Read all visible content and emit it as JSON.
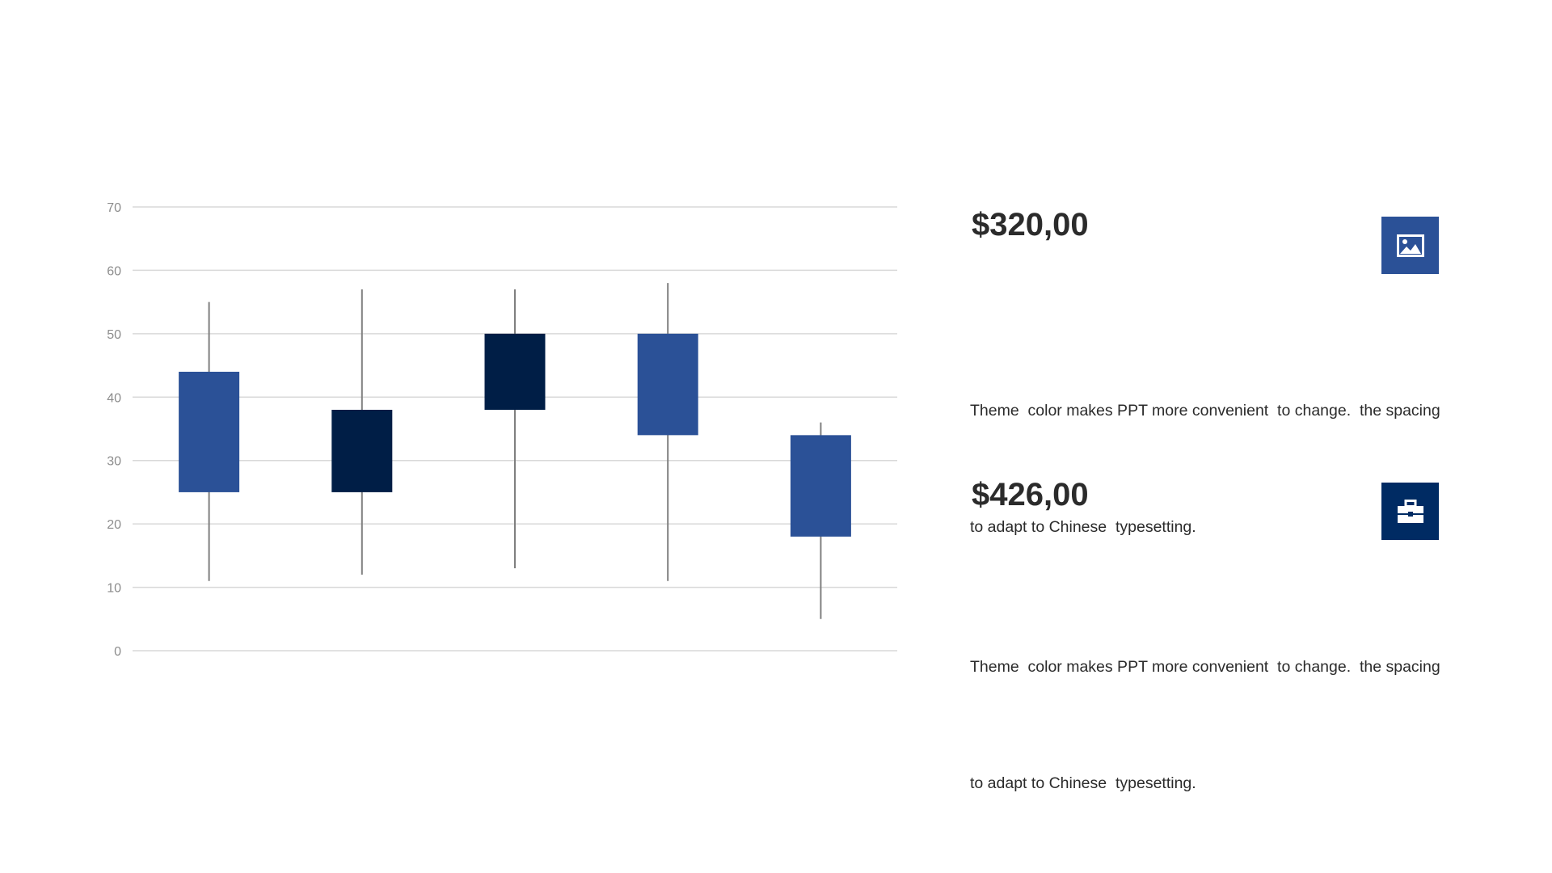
{
  "colors": {
    "rise_body": "#2b5197",
    "fall_body": "#001e46",
    "wick": "#7f7f7f",
    "grid": "#d9d9d9",
    "tick_text": "#8c8c8c",
    "text": "#2b2b2b"
  },
  "chart_data": {
    "type": "candlestick",
    "title": "",
    "xlabel": "",
    "ylabel": "",
    "ylim": [
      0,
      70
    ],
    "y_ticks": [
      "0",
      "10",
      "20",
      "30",
      "40",
      "50",
      "60",
      "70"
    ],
    "grid": true,
    "legend": "none",
    "candles": [
      {
        "open": 25,
        "close": 44,
        "high": 55,
        "low": 11,
        "direction": "rise"
      },
      {
        "open": 38,
        "close": 25,
        "high": 57,
        "low": 12,
        "direction": "fall"
      },
      {
        "open": 50,
        "close": 38,
        "high": 57,
        "low": 13,
        "direction": "fall"
      },
      {
        "open": 34,
        "close": 50,
        "high": 58,
        "low": 11,
        "direction": "rise"
      },
      {
        "open": 18,
        "close": 34,
        "high": 36,
        "low": 5,
        "direction": "rise"
      }
    ]
  },
  "items": [
    {
      "price": "$320,00",
      "desc_line1": "Theme  color makes PPT more convenient  to change.  the spacing",
      "desc_line2": "to adapt to Chinese  typesetting.",
      "icon": "image-icon",
      "icon_bg": "#2b5197"
    },
    {
      "price": "$426,00",
      "desc_line1": "Theme  color makes PPT more convenient  to change.  the spacing",
      "desc_line2": "to adapt to Chinese  typesetting.",
      "icon": "briefcase-icon",
      "icon_bg": "#002b63"
    }
  ]
}
